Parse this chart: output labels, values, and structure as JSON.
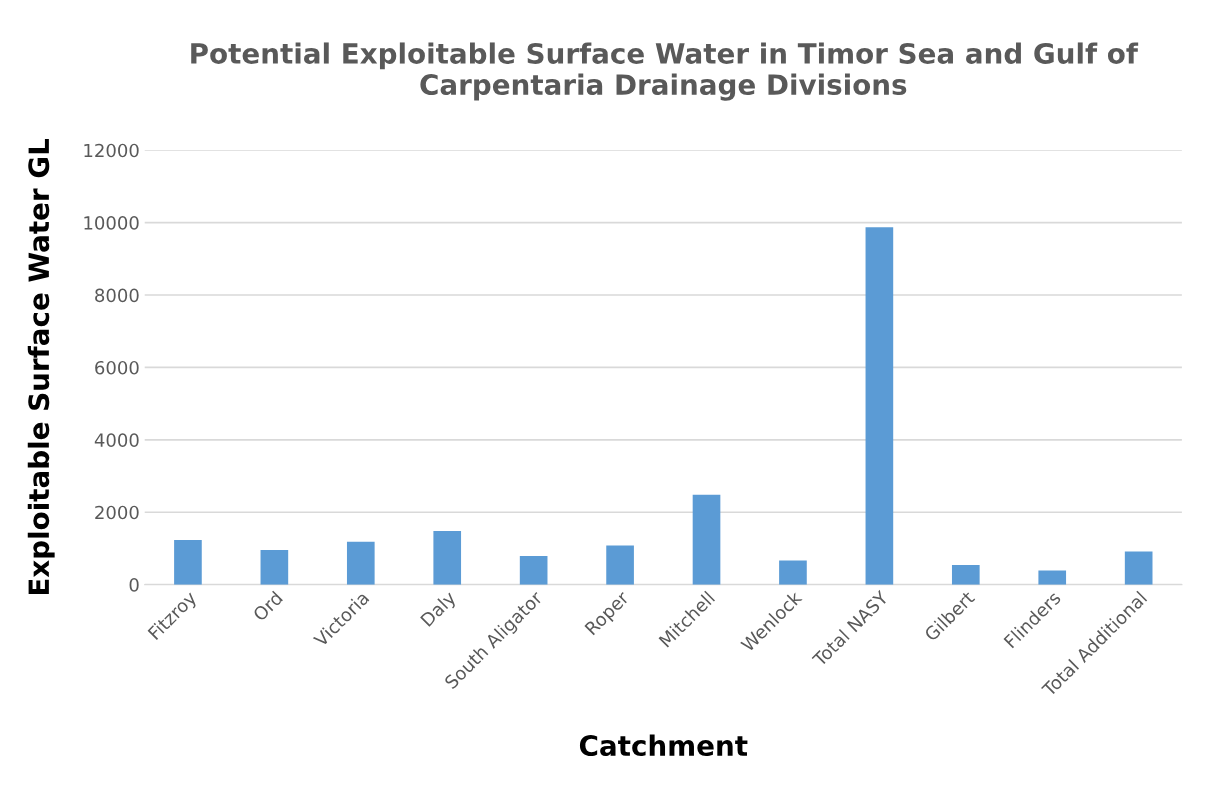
{
  "chart_data": {
    "type": "bar",
    "title": "Potential Exploitable Surface Water in Timor Sea and Gulf of\nCarpentaria Drainage Divisions",
    "xlabel": "Catchment",
    "ylabel": "Exploitable Surface Water GL",
    "categories": [
      "Fitzroy",
      "Ord",
      "Victoria",
      "Daly",
      "South Aligator",
      "Roper",
      "Mitchell",
      "Wenlock",
      "Total NASY",
      "Gilbert",
      "Flinders",
      "Total Additional"
    ],
    "values": [
      1230,
      960,
      1185,
      1480,
      790,
      1080,
      2480,
      670,
      9870,
      540,
      390,
      915
    ],
    "color": "#5b9bd5",
    "ylim": [
      0,
      12000
    ],
    "yticks": [
      0,
      2000,
      4000,
      6000,
      8000,
      10000,
      12000
    ],
    "grid": "y"
  }
}
